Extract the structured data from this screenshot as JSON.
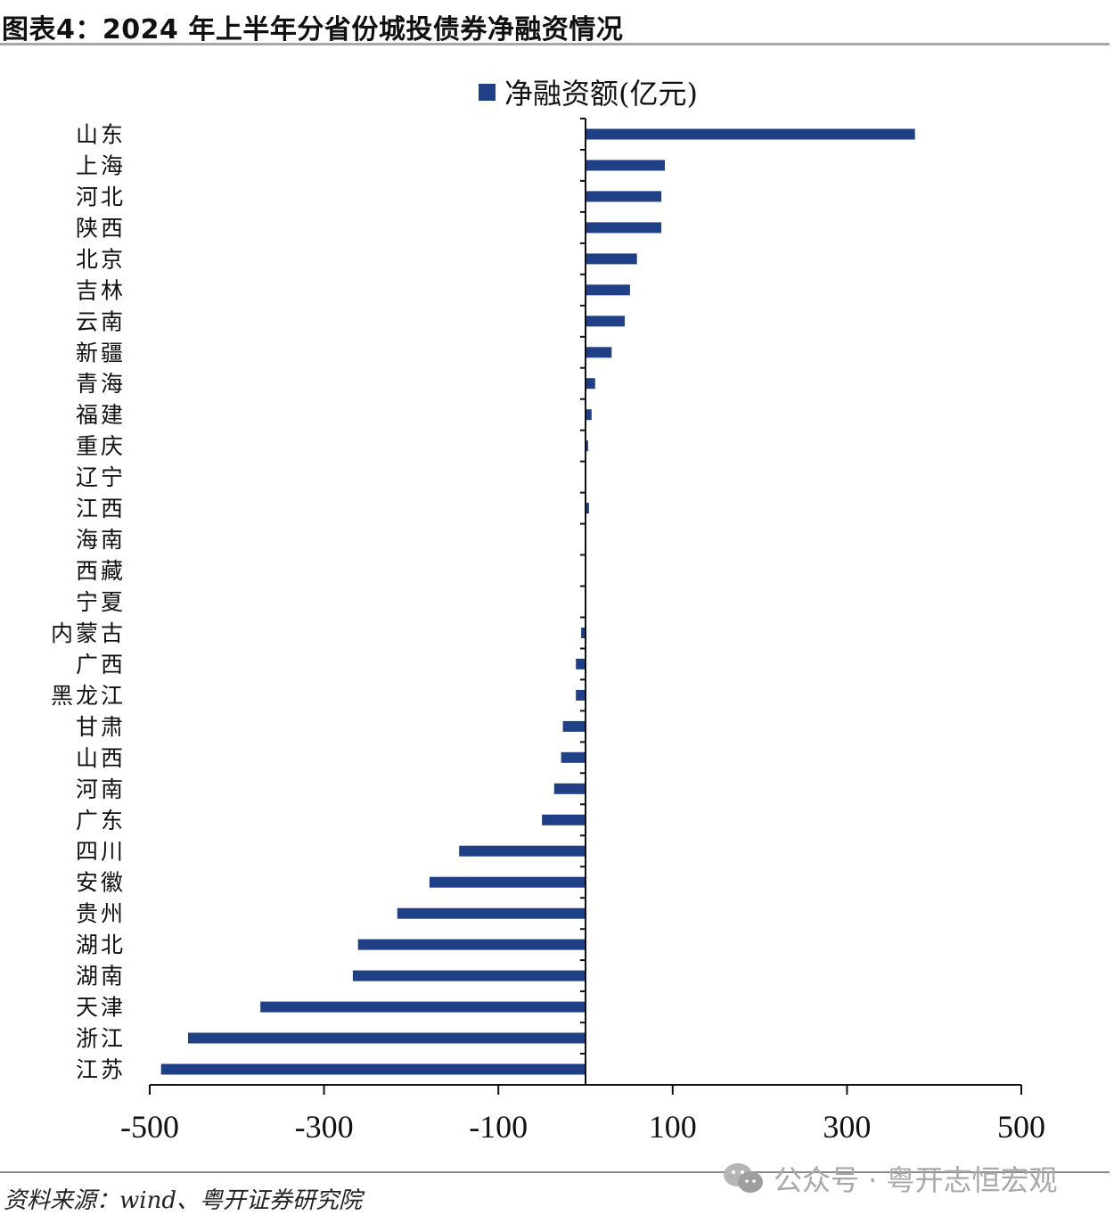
{
  "figure": {
    "title": "图表4：2024 年上半年分省份城投债券净融资情况",
    "source": "资料来源：wind、粤开证券研究院",
    "watermark": {
      "icon": "wechat-icon",
      "text": "公众号 · 粤开志恒宏观"
    }
  },
  "colors": {
    "bar": "#1f3f86",
    "axis": "#111111",
    "rule": "#a8a8a8",
    "watermark": "#a9a9a9"
  },
  "chart_data": {
    "type": "bar",
    "orientation": "horizontal",
    "title": "",
    "xlabel": "",
    "ylabel": "",
    "legend": {
      "position": "top",
      "entries": [
        "净融资额(亿元)"
      ]
    },
    "grid": false,
    "xlim": [
      -500,
      500
    ],
    "xticks": [
      -500,
      -300,
      -100,
      100,
      300,
      500
    ],
    "xtick_labels": [
      "-500",
      "-300",
      "-100",
      "100",
      "300",
      "500"
    ],
    "categories": [
      "山东",
      "上海",
      "河北",
      "陕西",
      "北京",
      "吉林",
      "云南",
      "新疆",
      "青海",
      "福建",
      "重庆",
      "辽宁",
      "江西",
      "海南",
      "西藏",
      "宁夏",
      "内蒙古",
      "广西",
      "黑龙江",
      "甘肃",
      "山西",
      "河南",
      "广东",
      "四川",
      "安徽",
      "贵州",
      "湖北",
      "湖南",
      "天津",
      "浙江",
      "江苏"
    ],
    "series": [
      {
        "name": "净融资额(亿元)",
        "values": [
          378,
          91,
          87,
          87,
          59,
          51,
          45,
          30,
          11,
          7,
          3,
          0.5,
          4,
          0,
          0,
          0,
          -5,
          -11,
          -11,
          -26,
          -28,
          -36,
          -50,
          -145,
          -179,
          -216,
          -261,
          -267,
          -373,
          -456,
          -487
        ]
      }
    ]
  }
}
